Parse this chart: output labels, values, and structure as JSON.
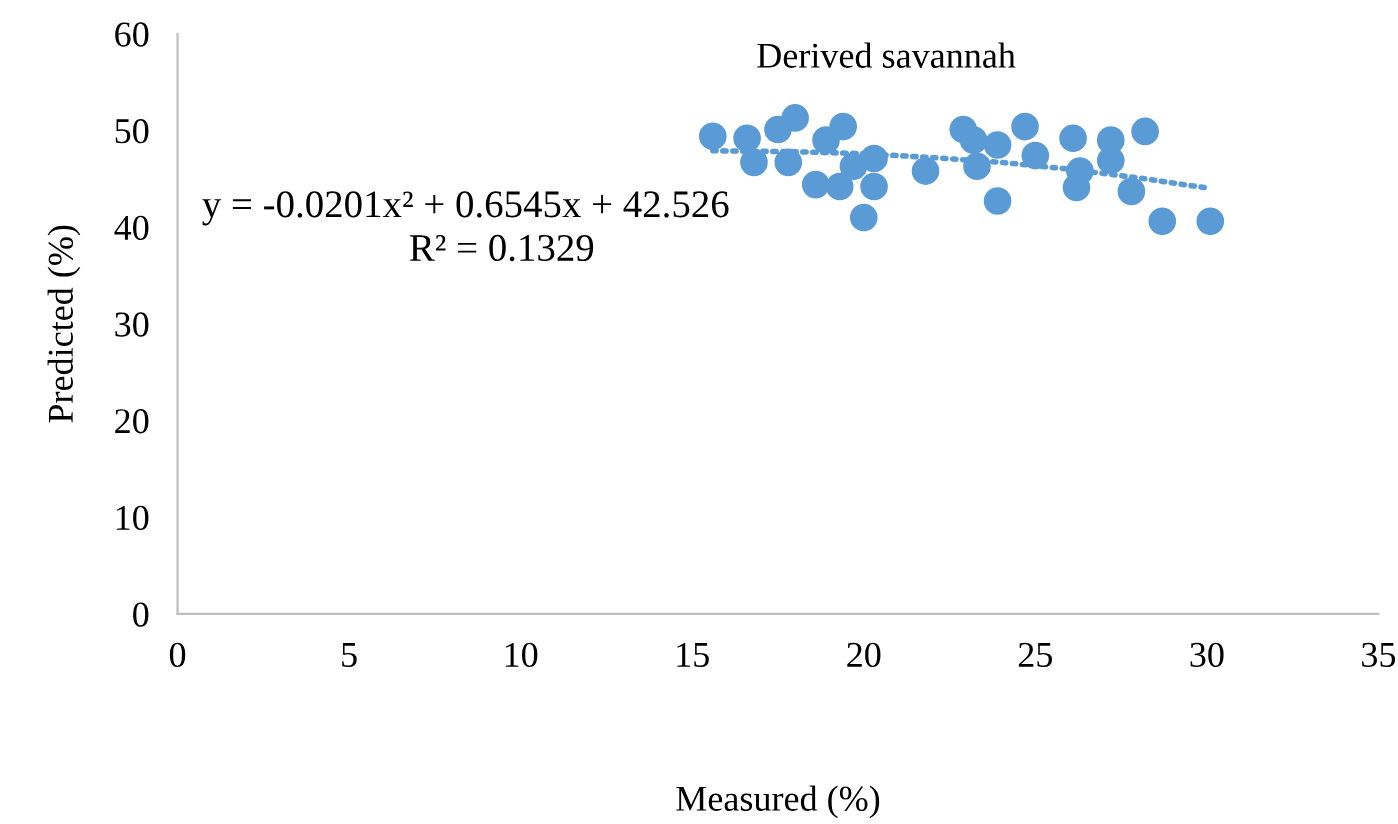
{
  "chart_data": {
    "type": "scatter",
    "title": "Derived savannah",
    "xlabel": "Measured (%)",
    "ylabel": "Predicted (%)",
    "xlim": [
      0,
      35
    ],
    "xticks": [
      0,
      5,
      10,
      15,
      20,
      25,
      30,
      35
    ],
    "ylim": [
      0,
      60
    ],
    "yticks": [
      0,
      10,
      20,
      30,
      40,
      50,
      60
    ],
    "grid": false,
    "marker": "circle",
    "series": [
      {
        "color": "#5b9bd5",
        "x": [
          15.6,
          16.6,
          16.8,
          17.5,
          17.8,
          18.0,
          17.8,
          18.6,
          18.9,
          19.4,
          19.3,
          19.7,
          20.3,
          20.3,
          20.0,
          21.8,
          22.9,
          23.2,
          23.3,
          23.9,
          23.9,
          24.7,
          25.0,
          26.1,
          26.3,
          26.2,
          27.2,
          27.2,
          27.8,
          28.2,
          28.7,
          30.1
        ],
        "values": [
          49.4,
          49.2,
          46.7,
          50.1,
          null,
          51.3,
          46.7,
          44.4,
          49.0,
          50.4,
          44.2,
          46.3,
          47.1,
          44.2,
          41.0,
          45.8,
          50.1,
          49.0,
          46.3,
          48.5,
          42.7,
          50.4,
          47.4,
          49.2,
          45.8,
          44.1,
          49.0,
          46.9,
          43.7,
          49.9,
          40.6,
          40.6
        ]
      },
      {
        "type": "line",
        "line_style": "dotted",
        "marker": "none",
        "color": "#5b9bd5",
        "x": [
          15.6,
          18,
          20,
          22,
          24,
          26,
          28,
          30.1
        ],
        "values": [
          47.9,
          47.8,
          47.6,
          47.2,
          46.7,
          46.0,
          45.1,
          44.0
        ]
      }
    ],
    "annotations": [
      "y = -0.0201x² + 0.6545x + 42.526",
      "R² = 0.1329"
    ]
  }
}
